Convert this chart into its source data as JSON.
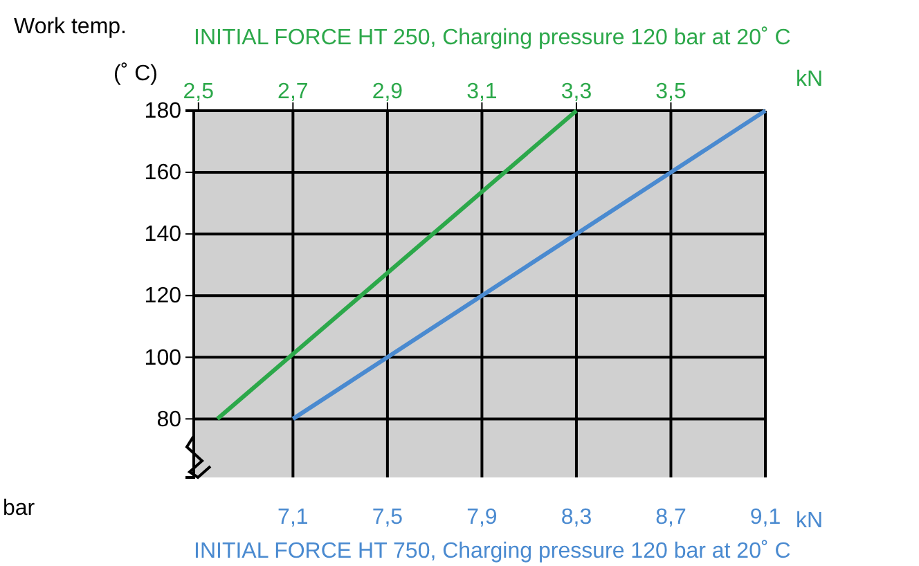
{
  "chart_data": {
    "type": "line",
    "ylabel": "Work temp. (˚ C)",
    "xlabel": "INITIAL FORCE HT 750, Charging pressure 120 bar at 20˚ C",
    "x2label": "INITIAL FORCE HT 250, Charging pressure 120 bar at 20˚ C",
    "annotations": [
      "kN",
      "kN",
      "bar"
    ],
    "xlim": [
      6.68,
      9.1
    ],
    "xticks": [
      {
        "value": 7.1,
        "label": "7,1"
      },
      {
        "value": 7.5,
        "label": "7,5"
      },
      {
        "value": 7.9,
        "label": "7,9"
      },
      {
        "value": 8.3,
        "label": "8,3"
      },
      {
        "value": 8.7,
        "label": "8,7"
      },
      {
        "value": 9.1,
        "label": "9,1"
      }
    ],
    "x2lim": [
      2.49,
      3.7
    ],
    "x2ticks": [
      {
        "value": 2.5,
        "label": "2,5"
      },
      {
        "value": 2.7,
        "label": "2,7"
      },
      {
        "value": 2.9,
        "label": "2,9"
      },
      {
        "value": 3.1,
        "label": "3,1"
      },
      {
        "value": 3.3,
        "label": "3,3"
      },
      {
        "value": 3.5,
        "label": "3,5"
      }
    ],
    "ylim": [
      61,
      180
    ],
    "yticks": [
      80,
      100,
      120,
      140,
      160,
      180
    ],
    "grid": true,
    "marker": "none",
    "line_style": "solid",
    "series": [
      {
        "color": "#2ca84a",
        "axis": "x2",
        "x": [
          2.54,
          3.3
        ],
        "values": [
          80,
          180
        ]
      },
      {
        "color": "#4a8ad0",
        "x": [
          7.1,
          9.1
        ],
        "values": [
          80,
          180
        ]
      }
    ]
  }
}
